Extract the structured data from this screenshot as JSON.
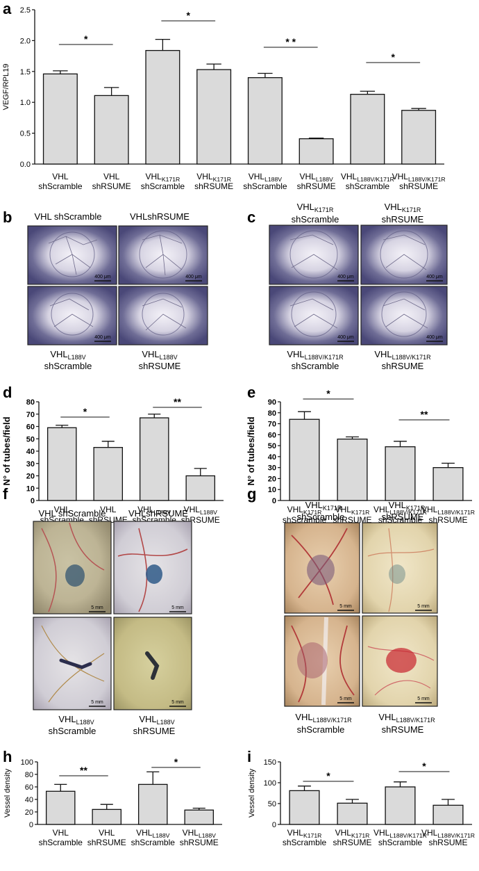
{
  "panels": {
    "a": {
      "letter": "a"
    },
    "b": {
      "letter": "b",
      "headers": [
        "VHL shScramble",
        "VHLshRSUME"
      ],
      "bottom": [
        {
          "base": "VHL",
          "sub": "L188V",
          "line2": "shScramble"
        },
        {
          "base": "VHL",
          "sub": "L188V",
          "line2": "shRSUME"
        }
      ],
      "scalebar": "400 μm"
    },
    "c": {
      "letter": "c",
      "top": [
        {
          "base": "VHL",
          "sub": "K171R",
          "line2": "shScramble"
        },
        {
          "base": "VHL",
          "sub": "K171R",
          "line2": "shRSUME"
        }
      ],
      "bottom": [
        {
          "base": "VHL",
          "sub": "L188V/K171R",
          "line2": "shScramble"
        },
        {
          "base": "VHL",
          "sub": "L188V/K171R",
          "line2": "shRSUME"
        }
      ],
      "scalebar": "400 μm"
    },
    "d": {
      "letter": "d"
    },
    "e": {
      "letter": "e"
    },
    "f": {
      "letter": "f",
      "headers": [
        "VHL shScramble",
        "VHLshRSUME"
      ],
      "bottom": [
        {
          "base": "VHL",
          "sub": "L188V",
          "line2": "shScramble"
        },
        {
          "base": "VHL",
          "sub": "L188V",
          "line2": "shRSUME"
        }
      ],
      "scalebar": "5 mm"
    },
    "g": {
      "letter": "g",
      "top": [
        {
          "base": "VHL",
          "sub": "K171R",
          "line2": "shScramble"
        },
        {
          "base": "VHL",
          "sub": "K171R",
          "line2": "shRSUME"
        }
      ],
      "bottom": [
        {
          "base": "VHL",
          "sub": "L188V/K171R",
          "line2": "shScramble"
        },
        {
          "base": "VHL",
          "sub": "L188V/K171R",
          "line2": "shRSUME"
        }
      ],
      "scalebar": "5 mm"
    },
    "h": {
      "letter": "h"
    },
    "i": {
      "letter": "i"
    }
  },
  "chart_data": [
    {
      "id": "a",
      "type": "bar",
      "ylabel": "VEGF/RPL19",
      "ylim": [
        0,
        2.5
      ],
      "yticks": [
        0.0,
        0.5,
        1.0,
        1.5,
        2.0,
        2.5
      ],
      "tick_decimals": 1,
      "categories": [
        {
          "base": "VHL",
          "sub": "",
          "line2": "shScramble"
        },
        {
          "base": "VHL",
          "sub": "",
          "line2": "shRSUME"
        },
        {
          "base": "VHL",
          "sub": "K171R",
          "line2": "shScramble"
        },
        {
          "base": "VHL",
          "sub": "K171R",
          "line2": "shRSUME"
        },
        {
          "base": "VHL",
          "sub": "L188V",
          "line2": "shScramble"
        },
        {
          "base": "VHL",
          "sub": "L188V",
          "line2": "shRSUME"
        },
        {
          "base": "VHL",
          "sub": "L188V/K171R",
          "line2": "shScramble"
        },
        {
          "base": "VHL",
          "sub": "L188V/K171R",
          "line2": "shRSUME"
        }
      ],
      "values": [
        1.46,
        1.11,
        1.84,
        1.53,
        1.4,
        0.41,
        1.13,
        0.87
      ],
      "errors": [
        0.05,
        0.13,
        0.18,
        0.09,
        0.07,
        0.01,
        0.05,
        0.03
      ],
      "significance": [
        {
          "pair": [
            0,
            1
          ],
          "label": "*"
        },
        {
          "pair": [
            2,
            3
          ],
          "label": "*"
        },
        {
          "pair": [
            4,
            5
          ],
          "label": "* *"
        },
        {
          "pair": [
            6,
            7
          ],
          "label": "*"
        }
      ]
    },
    {
      "id": "d",
      "type": "bar",
      "ylabel": "N° of tubes/field",
      "ylim": [
        0,
        80
      ],
      "yticks": [
        0,
        10,
        20,
        30,
        40,
        50,
        60,
        70,
        80
      ],
      "tick_decimals": 0,
      "categories": [
        {
          "base": "VHL",
          "sub": "",
          "line2": "shScramble"
        },
        {
          "base": "VHL",
          "sub": "",
          "line2": "shRSUME"
        },
        {
          "base": "VHL",
          "sub": "L188V",
          "line2": "shScramble"
        },
        {
          "base": "VHL",
          "sub": "L188V",
          "line2": "shRSUME"
        }
      ],
      "values": [
        59,
        43,
        67,
        20
      ],
      "errors": [
        2,
        5,
        3,
        6
      ],
      "significance": [
        {
          "pair": [
            0,
            1
          ],
          "label": "*"
        },
        {
          "pair": [
            2,
            3
          ],
          "label": "**"
        }
      ]
    },
    {
      "id": "e",
      "type": "bar",
      "ylabel": "N° of tubes/field",
      "ylim": [
        0,
        90
      ],
      "yticks": [
        0,
        10,
        20,
        30,
        40,
        50,
        60,
        70,
        80,
        90
      ],
      "tick_decimals": 0,
      "categories": [
        {
          "base": "VHL",
          "sub": "K171R",
          "line2": "shScramble"
        },
        {
          "base": "VHL",
          "sub": "K171R",
          "line2": "shRSUME"
        },
        {
          "base": "VHL",
          "sub": "L188V/K171R",
          "line2": "shScramble"
        },
        {
          "base": "VHL",
          "sub": "L188V/K171R",
          "line2": "shRSUME"
        }
      ],
      "values": [
        74,
        56,
        49,
        30
      ],
      "errors": [
        7,
        2,
        5,
        4
      ],
      "significance": [
        {
          "pair": [
            0,
            1
          ],
          "label": "*"
        },
        {
          "pair": [
            2,
            3
          ],
          "label": "**"
        }
      ]
    },
    {
      "id": "h",
      "type": "bar",
      "ylabel": "Vessel density",
      "ylim": [
        0,
        100
      ],
      "yticks": [
        0,
        20,
        40,
        60,
        80,
        100
      ],
      "tick_decimals": 0,
      "categories": [
        {
          "base": "VHL",
          "sub": "",
          "line2": "shScramble"
        },
        {
          "base": "VHL",
          "sub": "",
          "line2": "shRSUME"
        },
        {
          "base": "VHL",
          "sub": "L188V",
          "line2": "shScramble"
        },
        {
          "base": "VHL",
          "sub": "L188V",
          "line2": "shRSUME"
        }
      ],
      "values": [
        53,
        24,
        64,
        23
      ],
      "errors": [
        11,
        8,
        20,
        3
      ],
      "significance": [
        {
          "pair": [
            0,
            1
          ],
          "label": "**"
        },
        {
          "pair": [
            2,
            3
          ],
          "label": "*"
        }
      ]
    },
    {
      "id": "i",
      "type": "bar",
      "ylabel": "Vessel density",
      "ylim": [
        0,
        150
      ],
      "yticks": [
        0,
        50,
        100,
        150
      ],
      "tick_decimals": 0,
      "categories": [
        {
          "base": "VHL",
          "sub": "K171R",
          "line2": "shScramble"
        },
        {
          "base": "VHL",
          "sub": "K171R",
          "line2": "shRSUME"
        },
        {
          "base": "VHL",
          "sub": "L188V/K171R",
          "line2": "shScramble"
        },
        {
          "base": "VHL",
          "sub": "L188V/K171R",
          "line2": "shRSUME"
        }
      ],
      "values": [
        81,
        51,
        90,
        46
      ],
      "errors": [
        11,
        9,
        12,
        14
      ],
      "significance": [
        {
          "pair": [
            0,
            1
          ],
          "label": "*"
        },
        {
          "pair": [
            2,
            3
          ],
          "label": "*"
        }
      ]
    }
  ]
}
